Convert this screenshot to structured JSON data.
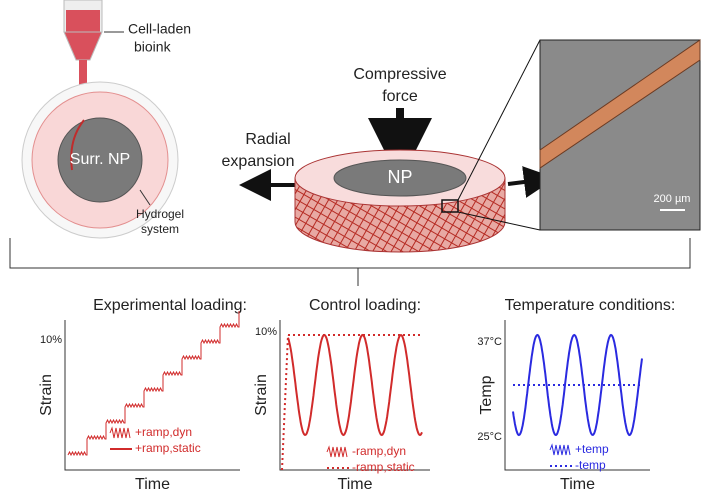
{
  "top": {
    "bioink_label": [
      "Cell-laden",
      "bioink"
    ],
    "surr_np": "Surr. NP",
    "hydrogel_label": [
      "Hydrogel",
      "system"
    ],
    "force_label": [
      "Compressive",
      "force"
    ],
    "expansion_label": [
      "Radial",
      "expansion"
    ],
    "np": "NP",
    "scale_bar": "200 µm"
  },
  "panels": [
    {
      "title": "Experimental loading:",
      "y_label": "Strain",
      "x_label": "Time",
      "y_ticks": [
        "10%"
      ],
      "legend": [
        "+ramp,dyn",
        "+ramp,static"
      ]
    },
    {
      "title": "Control loading:",
      "y_label": "Strain",
      "x_label": "Time",
      "y_ticks": [
        "10%"
      ],
      "legend": [
        "-ramp,dyn",
        "-ramp,static"
      ]
    },
    {
      "title": "Temperature conditions:",
      "y_label": "Temp",
      "x_label": "Time",
      "y_ticks": [
        "37°C",
        "25°C"
      ],
      "legend": [
        "+temp",
        "-temp"
      ]
    }
  ]
}
